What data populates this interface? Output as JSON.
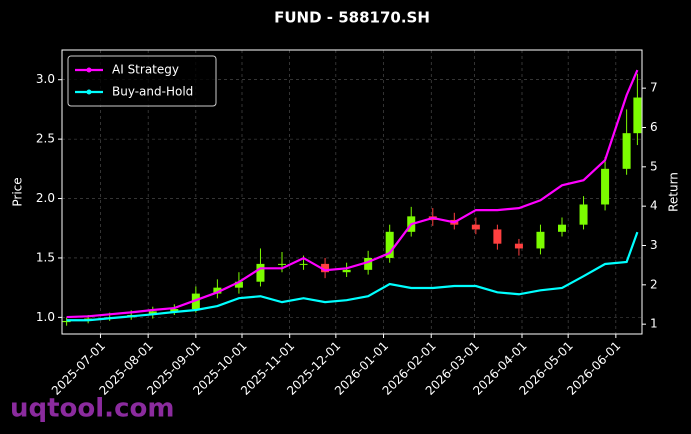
{
  "chart_data": {
    "type": "candlestick",
    "title": "FUND - 588170.SH",
    "ylabel": "Price",
    "y2label": "Return",
    "watermark": "uqtool.com",
    "x": [
      "2025-06-09",
      "2025-06-23",
      "2025-07-07",
      "2025-07-21",
      "2025-08-04",
      "2025-08-18",
      "2025-09-01",
      "2025-09-15",
      "2025-09-29",
      "2025-10-13",
      "2025-10-27",
      "2025-11-10",
      "2025-11-24",
      "2025-12-08",
      "2025-12-22",
      "2026-01-05",
      "2026-01-19",
      "2026-02-02",
      "2026-02-16",
      "2026-03-02",
      "2026-03-16",
      "2026-03-30",
      "2026-04-13",
      "2026-04-27",
      "2026-05-11",
      "2026-05-25",
      "2026-06-08",
      "2026-06-15"
    ],
    "open": [
      0.96,
      0.97,
      0.99,
      1.0,
      1.02,
      1.05,
      1.07,
      1.2,
      1.25,
      1.3,
      1.45,
      1.45,
      1.45,
      1.38,
      1.4,
      1.5,
      1.72,
      1.85,
      1.82,
      1.78,
      1.74,
      1.62,
      1.58,
      1.72,
      1.78,
      1.95,
      2.25,
      2.55
    ],
    "high": [
      1.0,
      1.02,
      1.04,
      1.06,
      1.09,
      1.11,
      1.26,
      1.32,
      1.38,
      1.58,
      1.55,
      1.52,
      1.5,
      1.46,
      1.56,
      1.78,
      1.93,
      1.92,
      1.88,
      1.84,
      1.78,
      1.66,
      1.78,
      1.84,
      2.02,
      2.35,
      2.75,
      3.05
    ],
    "low": [
      0.93,
      0.95,
      0.97,
      0.98,
      0.99,
      1.02,
      1.04,
      1.16,
      1.2,
      1.26,
      1.38,
      1.4,
      1.33,
      1.34,
      1.36,
      1.46,
      1.68,
      1.77,
      1.74,
      1.7,
      1.57,
      1.52,
      1.53,
      1.68,
      1.74,
      1.9,
      2.2,
      2.45
    ],
    "close": [
      0.97,
      0.99,
      1.0,
      1.02,
      1.05,
      1.07,
      1.2,
      1.25,
      1.3,
      1.45,
      1.45,
      1.45,
      1.38,
      1.4,
      1.5,
      1.72,
      1.85,
      1.82,
      1.78,
      1.74,
      1.62,
      1.58,
      1.72,
      1.78,
      1.95,
      2.25,
      2.55,
      2.85
    ],
    "up_color": "#7cfc00",
    "down_color": "#ff4040",
    "series": [
      {
        "name": "AI Strategy",
        "color": "#ff00ff",
        "axis": "y2",
        "values": [
          1.18,
          1.2,
          1.25,
          1.3,
          1.36,
          1.41,
          1.61,
          1.81,
          2.07,
          2.42,
          2.42,
          2.68,
          2.37,
          2.42,
          2.58,
          2.81,
          3.54,
          3.7,
          3.59,
          3.9,
          3.9,
          3.95,
          4.15,
          4.53,
          4.66,
          5.17,
          6.82,
          7.46
        ]
      },
      {
        "name": "Buy-and-Hold",
        "color": "#00ffff",
        "axis": "y2",
        "values": [
          1.1,
          1.1,
          1.15,
          1.2,
          1.25,
          1.31,
          1.36,
          1.46,
          1.66,
          1.71,
          1.56,
          1.66,
          1.56,
          1.61,
          1.71,
          2.02,
          1.92,
          1.92,
          1.97,
          1.97,
          1.81,
          1.76,
          1.86,
          1.92,
          2.22,
          2.53,
          2.58,
          3.34
        ]
      }
    ],
    "xlim": [
      "2025-06-06",
      "2026-06-18"
    ],
    "xticks": [
      "2025-07-01",
      "2025-08-01",
      "2025-09-01",
      "2025-10-01",
      "2025-11-01",
      "2025-12-01",
      "2026-01-01",
      "2026-02-01",
      "2026-03-01",
      "2026-04-01",
      "2026-05-01",
      "2026-06-01"
    ],
    "ylim": [
      0.86,
      3.25
    ],
    "yticks": [
      {
        "value": 1,
        "label": "1.0"
      },
      1.5,
      {
        "value": 2,
        "label": "2.0"
      },
      2.5,
      {
        "value": 3,
        "label": "3.0"
      }
    ],
    "y2lim": [
      0.75,
      7.97
    ],
    "y2ticks": [
      1,
      2,
      3,
      4,
      5,
      6,
      7
    ],
    "grid": true,
    "legend": "upper left"
  }
}
